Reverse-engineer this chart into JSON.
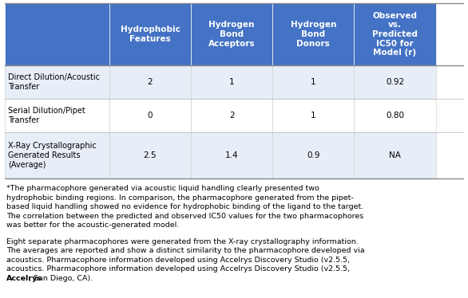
{
  "header_bg_color": "#4472C4",
  "header_text_color": "#FFFFFF",
  "row_colors": [
    "#E8EEF7",
    "#FFFFFF",
    "#E8EEF7"
  ],
  "border_color": "#CCCCCC",
  "text_color": "#000000",
  "col_headers": [
    "Hydrophobic\nFeatures",
    "Hydrogen\nBond\nAcceptors",
    "Hydrogen\nBond\nDonors",
    "Observed\nvs.\nPredicted\nIC50 for\nModel (r)"
  ],
  "row_labels": [
    "Direct Dilution/Acoustic\nTransfer",
    "Serial Dilution/Pipet\nTransfer",
    "X-Ray Crystallographic\nGenerated Results\n(Average)"
  ],
  "table_data": [
    [
      "2",
      "1",
      "1",
      "0.92"
    ],
    [
      "0",
      "2",
      "1",
      "0.80"
    ],
    [
      "2.5",
      "1.4",
      "0.9",
      "NA"
    ]
  ],
  "footnote1_lines": [
    "*The pharmacophore generated via acoustic liquid handling clearly presented two",
    "hydrophobic binding regions. In comparison, the pharmacophore generated from the pipet-",
    "based liquid handling showed no evidence for hydrophobic binding of the ligand to the target.",
    "The correlation between the predicted and observed IC50 values for the two pharmacophores",
    "was better for the acoustic-generated model."
  ],
  "footnote2_lines": [
    "Eight separate pharmacophores were generated from the X-ray crystallography information.",
    "The averages are reported and show a distinct similarity to the pharmacophore developed via",
    "acoustics. Pharmacophore information developed using Accelrys Discovery Studio (v2.5.5,",
    "Accelrys_BOLD, San Diego, CA)."
  ],
  "footnote2_bold_word": "Accelrys",
  "fig_width": 5.86,
  "fig_height": 3.74,
  "dpi": 100
}
